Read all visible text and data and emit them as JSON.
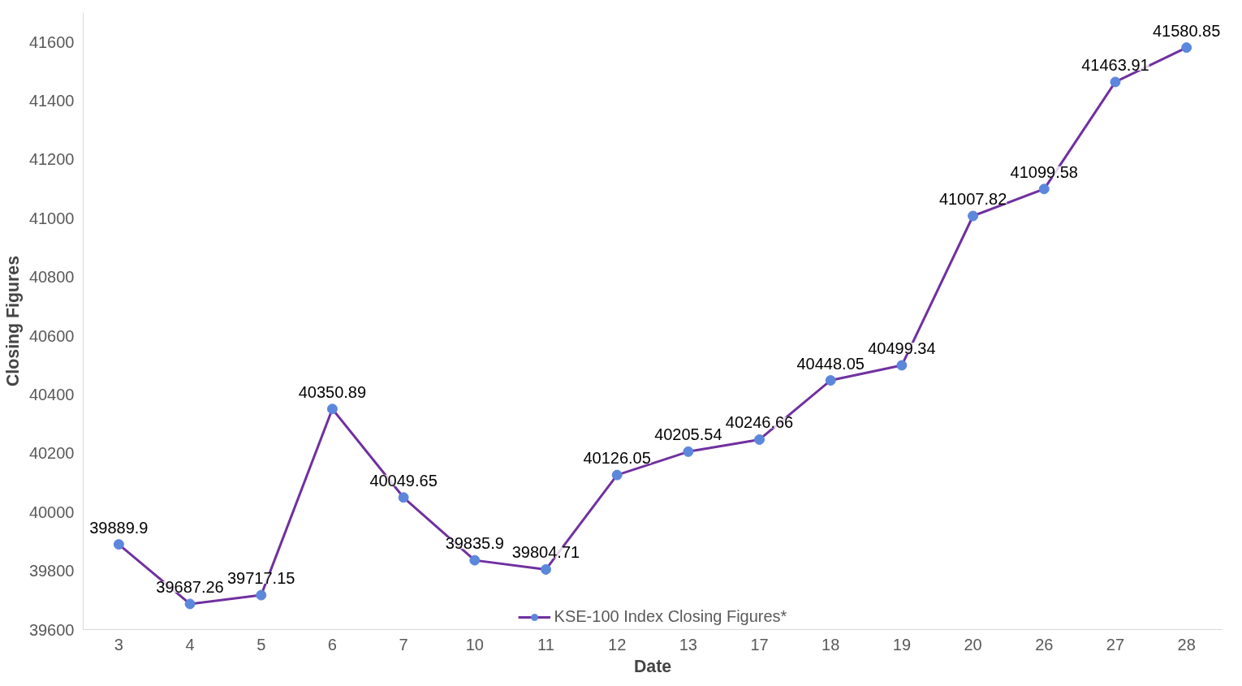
{
  "chart_data": {
    "type": "line",
    "xlabel": "Date",
    "ylabel": "Closing Figures",
    "categories": [
      "3",
      "4",
      "5",
      "6",
      "7",
      "10",
      "11",
      "12",
      "13",
      "17",
      "18",
      "19",
      "20",
      "26",
      "27",
      "28"
    ],
    "series": [
      {
        "name": "KSE-100 Index Closing Figures*",
        "color": "#7030a0",
        "colors": [
          "#5b87dc",
          "#5b87dc",
          "#5b87dc",
          "#5b87dc",
          "#5b87dc",
          "#5b87dc",
          "#5b87dc",
          "#5b87dc",
          "#5b87dc",
          "#5b87dc",
          "#5b87dc",
          "#5b87dc",
          "#5b87dc",
          "#5b87dc",
          "#5b87dc",
          "#5b87dc"
        ],
        "values": [
          39889.9,
          39687.26,
          39717.15,
          40350.89,
          40049.65,
          39835.9,
          39804.71,
          40126.05,
          40205.54,
          40246.66,
          40448.05,
          40499.34,
          41007.82,
          41099.58,
          41463.91,
          41580.85
        ]
      }
    ],
    "ylim": [
      39600,
      41700
    ],
    "yticks": [
      39600,
      39800,
      40000,
      40200,
      40400,
      40600,
      40800,
      41000,
      41200,
      41400,
      41600
    ],
    "grid": false,
    "legend": "bottom",
    "marker": "circle",
    "line_style": "solid",
    "data_labels": true
  }
}
